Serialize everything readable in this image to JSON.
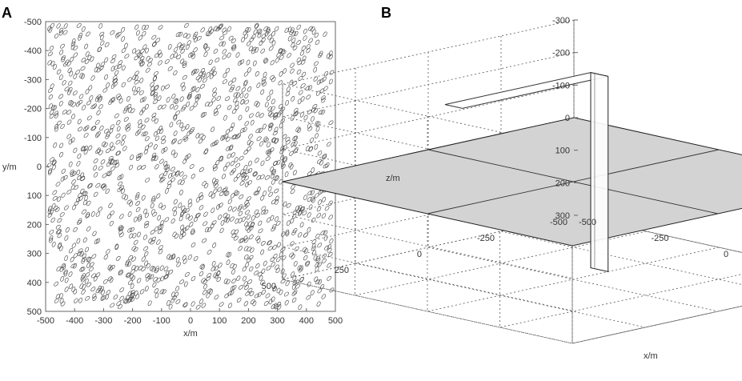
{
  "panels": [
    {
      "label": "A"
    },
    {
      "label": "B"
    }
  ],
  "colors": {
    "ellipse_stroke": "#444444",
    "plane_fill": "#d3d3d3",
    "slab_fill": "#ffffff",
    "grid_line": "#555555"
  },
  "chart_data": [
    {
      "type": "scatter",
      "marker": "ellipse",
      "description_source": "panel A: randomly distributed small elliptical fractures (plan view)",
      "xlabel": "x/m",
      "ylabel": "y/m",
      "xlim": [
        -500,
        500
      ],
      "ylim": [
        -500,
        500
      ],
      "y_inverted": true,
      "xticks": [
        "-500",
        "-400",
        "-300",
        "-200",
        "-100",
        "0",
        "100",
        "200",
        "300",
        "400",
        "500"
      ],
      "yticks": [
        "-500",
        "-400",
        "-300",
        "-200",
        "-100",
        "0",
        "100",
        "200",
        "300",
        "400",
        "500"
      ],
      "ellipse_count": 1500,
      "ellipse_semi_axes_m": [
        9,
        5
      ],
      "ellipse_orientation_deg": [
        -70,
        -40
      ],
      "grid": false
    },
    {
      "type": "3d-geometry",
      "description_source": "panel B: horizontal plane z=0 intersected by a vertical slab",
      "xlabel": "x/m",
      "zlabel": "z/m",
      "xlim": [
        -500,
        500
      ],
      "ylim": [
        -500,
        500
      ],
      "zlim": [
        -300,
        300
      ],
      "z_inverted": true,
      "xticks": [
        "-500",
        "-250",
        "0",
        "250",
        "500"
      ],
      "yticks": [
        "-500",
        "-250",
        "0",
        "250",
        "500"
      ],
      "zticks": [
        "-300",
        "-200",
        "-100",
        "0",
        "100",
        "200",
        "300"
      ],
      "plane": {
        "z": 0,
        "x": [
          -500,
          500
        ],
        "y": [
          -500,
          500
        ]
      },
      "slab": {
        "x": [
          -60,
          0
        ],
        "y": [
          -500,
          -500
        ],
        "z": [
          -300,
          300
        ]
      },
      "grid": true
    }
  ]
}
